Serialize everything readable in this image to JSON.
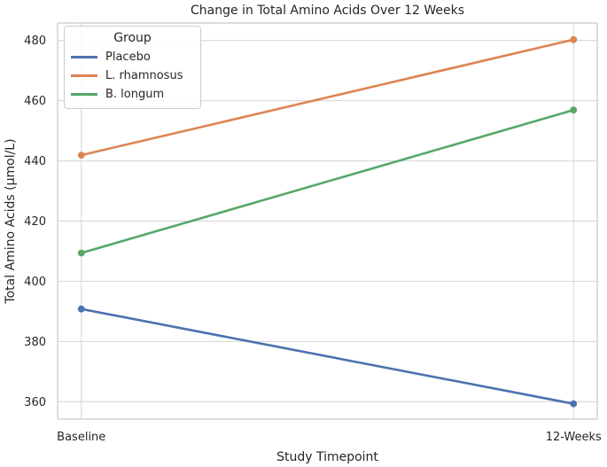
{
  "chart_data": {
    "type": "line",
    "title": "Change in Total Amino Acids Over 12 Weeks",
    "xlabel": "Study Timepoint",
    "ylabel": "Total Amino Acids (μmol/L)",
    "categories": [
      "Baseline",
      "12-Weeks"
    ],
    "series": [
      {
        "name": "Placebo",
        "color": "#4C72B0",
        "values": [
          390.8,
          359.3
        ]
      },
      {
        "name": "L. rhamnosus",
        "color": "#DD8452",
        "values": [
          441.9,
          480.3
        ]
      },
      {
        "name": "B. longum",
        "color": "#55A868",
        "values": [
          409.4,
          456.9
        ]
      }
    ],
    "yticks": [
      360,
      380,
      400,
      420,
      440,
      460,
      480
    ],
    "ylim": [
      354.2,
      485.8
    ],
    "legend_title": "Group",
    "legend_position": "upper left",
    "grid": true,
    "marker": "circle",
    "grid_color": "#d4d4d4",
    "text_color": "#262626"
  }
}
